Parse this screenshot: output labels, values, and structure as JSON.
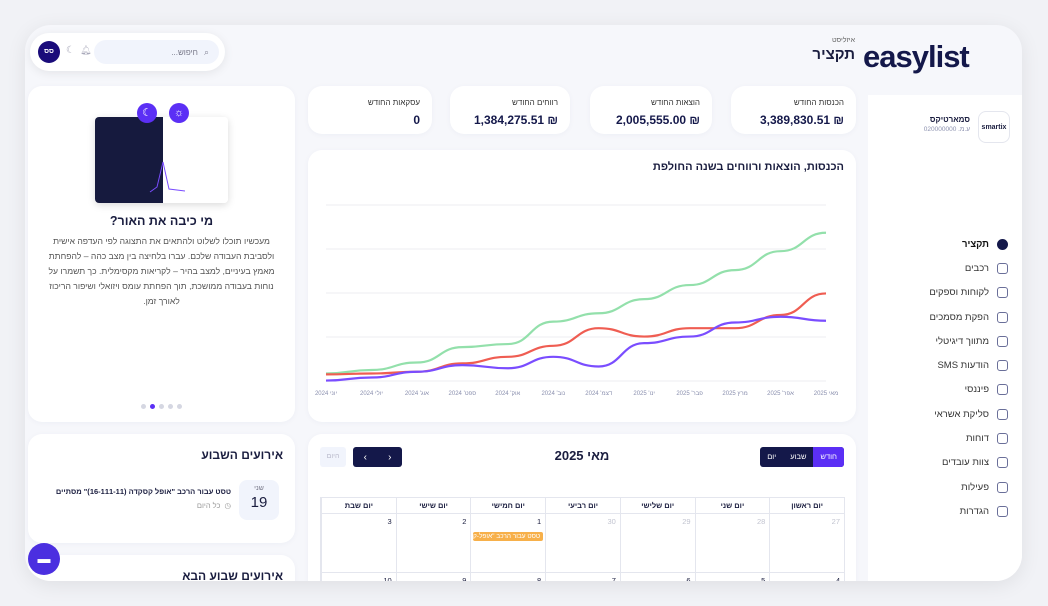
{
  "brand": {
    "logo": "easylist"
  },
  "header": {
    "breadcrumb": "איזליסט",
    "title": "תקציר",
    "search_placeholder": "חיפוש...",
    "avatar": "סס"
  },
  "company": {
    "name": "סמארטיקס",
    "id": "ע.מ. 020000000",
    "logo": "smartix"
  },
  "sidebar": {
    "items": [
      {
        "label": "תקציר",
        "icon": "dashboard-icon",
        "active": true
      },
      {
        "label": "רכבים",
        "icon": "car-icon"
      },
      {
        "label": "לקוחות וספקים",
        "icon": "users-icon"
      },
      {
        "label": "הפקת מסמכים",
        "icon": "edit-document-icon"
      },
      {
        "label": "מתווך דיגיטלי",
        "icon": "camera-icon"
      },
      {
        "label": "הודעות SMS",
        "icon": "chat-icon"
      },
      {
        "label": "פיננסי",
        "icon": "calculator-icon"
      },
      {
        "label": "סליקת אשראי",
        "icon": "credit-card-icon"
      },
      {
        "label": "דוחות",
        "icon": "report-icon"
      },
      {
        "label": "צוות עובדים",
        "icon": "team-icon"
      },
      {
        "label": "פעילות",
        "icon": "activity-icon"
      },
      {
        "label": "הגדרות",
        "icon": "settings-icon"
      }
    ]
  },
  "kpis": [
    {
      "label": "הכנסות החודש",
      "value": "₪ 3,389,830.51"
    },
    {
      "label": "הוצאות החודש",
      "value": "₪ 2,005,555.00"
    },
    {
      "label": "רווחים החודש",
      "value": "₪ 1,384,275.51"
    },
    {
      "label": "עסקאות החודש",
      "value": "0"
    }
  ],
  "promo": {
    "title": "מי כיבה את האור?",
    "body": "מעכשיו תוכלו לשלוט ולהתאים את התצוגה לפי העדפה אישית ולסביבת העבודה שלכם. עברו בלחיצה בין מצב כהה – להפחתת מאמץ בעיניים, למצב בהיר – לקריאות מקסימלית. כך תשמרו על נוחות בעבודה ממושכת, תוך הפחתת עומס ויזואלי ושיפור הריכוז לאורך זמן.",
    "slides": 5,
    "active_slide": 2
  },
  "chart_data": {
    "type": "line",
    "title": "הכנסות, הוצאות ורווחים בשנה החולפת",
    "categories": [
      "יוני 2024",
      "יולי 2024",
      "אוג' 2024",
      "ספט' 2024",
      "אוק' 2024",
      "נוב' 2024",
      "דצמ' 2024",
      "ינו' 2025",
      "פבר' 2025",
      "מרץ 2025",
      "אפר' 2025",
      "מאי 2025"
    ],
    "ylim": [
      0,
      4
    ],
    "grid": true,
    "series": [
      {
        "color": "#93e0ab",
        "values": [
          0.17,
          0.25,
          0.42,
          0.77,
          0.84,
          1.35,
          1.54,
          1.86,
          2.18,
          2.52,
          2.95,
          3.37
        ]
      },
      {
        "color": "#ef5d52",
        "values": [
          0.15,
          0.17,
          0.21,
          0.4,
          0.55,
          0.8,
          1.2,
          1.01,
          1.2,
          1.2,
          1.5,
          1.99
        ]
      },
      {
        "color": "#7a4dff",
        "values": [
          0.01,
          0.08,
          0.21,
          0.36,
          0.29,
          0.55,
          0.33,
          0.86,
          1.01,
          1.33,
          1.46,
          1.37
        ]
      }
    ]
  },
  "events": {
    "title": "אירועים השבוע",
    "items": [
      {
        "day": "שני",
        "date": "19",
        "text": "טסט עבור הרכב \"אופל קסקדה (16-111-11)\" מסתיים",
        "time": "כל היום"
      }
    ],
    "next_title": "אירועים שבוע הבא"
  },
  "calendar": {
    "title": "מאי 2025",
    "views": [
      "חודש",
      "שבוע",
      "יום"
    ],
    "active_view": "חודש",
    "today": "היום",
    "days": [
      "יום ראשון",
      "יום שני",
      "יום שלישי",
      "יום רביעי",
      "יום חמישי",
      "יום שישי",
      "יום שבת"
    ],
    "rows": [
      [
        "27",
        "28",
        "29",
        "30",
        "1",
        "2",
        "3"
      ],
      [
        "4",
        "5",
        "6",
        "7",
        "8",
        "9",
        "10"
      ]
    ],
    "event": "טסט עבור הרכב \"אופל-ק"
  },
  "colors": {
    "navy": "#14184a",
    "accent": "#5b2ff5"
  }
}
